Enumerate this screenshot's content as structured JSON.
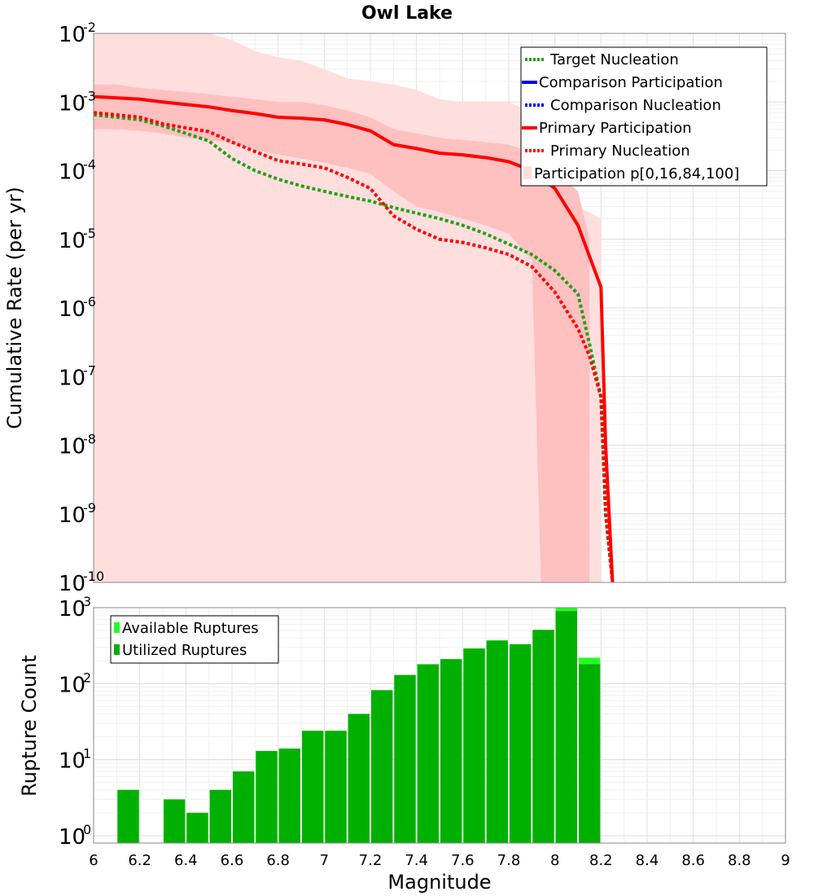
{
  "chart_data": [
    {
      "type": "line",
      "title": "Owl Lake",
      "ylabel": "Cumulative Rate (per yr)",
      "xlim": [
        6,
        9
      ],
      "ylim": [
        1e-10,
        0.01
      ],
      "yscale": "log",
      "grid": true,
      "legend_position": "top-right",
      "x_ticks": [],
      "y_ticks": [
        {
          "base": "10",
          "exp": "-2"
        },
        {
          "base": "10",
          "exp": "-3"
        },
        {
          "base": "10",
          "exp": "-4"
        },
        {
          "base": "10",
          "exp": "-5"
        },
        {
          "base": "10",
          "exp": "-6"
        },
        {
          "base": "10",
          "exp": "-7"
        },
        {
          "base": "10",
          "exp": "-8"
        },
        {
          "base": "10",
          "exp": "-9"
        },
        {
          "base": "10",
          "exp": "-10"
        }
      ],
      "legend": [
        "Target Nucleation",
        "Comparison Participation",
        "Comparison Nucleation",
        "Primary Participation",
        "Primary Nucleation",
        "Participation p[0,16,84,100]"
      ],
      "colors": {
        "target": "#22a11a",
        "comparison": "#0000ee",
        "primary": "#ff0000",
        "band_outer": "#ffdede",
        "band_inner": "#ffc0c0"
      },
      "series": [
        {
          "name": "Target Nucleation",
          "style": "dotted",
          "x": [
            6.0,
            6.1,
            6.2,
            6.3,
            6.4,
            6.5,
            6.6,
            6.7,
            6.8,
            6.9,
            7.0,
            7.1,
            7.2,
            7.3,
            7.4,
            7.5,
            7.6,
            7.7,
            7.8,
            7.9,
            8.0,
            8.1,
            8.15,
            8.2,
            8.22,
            8.25
          ],
          "y": [
            0.00065,
            0.0006,
            0.00055,
            0.00045,
            0.00035,
            0.00027,
            0.00015,
            0.0001,
            7.5e-05,
            6e-05,
            5e-05,
            4.2e-05,
            3.6e-05,
            2.9e-05,
            2.4e-05,
            2e-05,
            1.6e-05,
            1.2e-05,
            8.5e-06,
            6e-06,
            3.5e-06,
            1.6e-06,
            3e-07,
            5e-08,
            1e-09,
            1e-10
          ]
        },
        {
          "name": "Primary Participation",
          "style": "solid",
          "x": [
            6.0,
            6.2,
            6.3,
            6.4,
            6.5,
            6.6,
            6.7,
            6.8,
            6.9,
            7.0,
            7.1,
            7.2,
            7.3,
            7.4,
            7.5,
            7.6,
            7.7,
            7.8,
            7.9,
            8.0,
            8.1,
            8.2,
            8.22,
            8.25
          ],
          "y": [
            0.0012,
            0.0011,
            0.001,
            0.00092,
            0.00085,
            0.00075,
            0.00068,
            0.0006,
            0.00058,
            0.00055,
            0.00047,
            0.00038,
            0.00024,
            0.00021,
            0.00018,
            0.00017,
            0.000155,
            0.000135,
            0.0001,
            5.5e-05,
            1.6e-05,
            2e-06,
            1e-08,
            1e-10
          ]
        },
        {
          "name": "Primary Nucleation",
          "style": "dotted",
          "x": [
            6.0,
            6.1,
            6.2,
            6.3,
            6.4,
            6.5,
            6.6,
            6.7,
            6.8,
            6.9,
            7.0,
            7.1,
            7.2,
            7.3,
            7.4,
            7.5,
            7.6,
            7.7,
            7.8,
            7.9,
            8.0,
            8.1,
            8.15,
            8.2,
            8.22,
            8.25
          ],
          "y": [
            0.0007,
            0.00065,
            0.0006,
            0.00048,
            0.00042,
            0.00037,
            0.00026,
            0.00019,
            0.00014,
            0.000125,
            0.00011,
            8e-05,
            5.5e-05,
            2.2e-05,
            1.4e-05,
            1e-05,
            9e-06,
            7.5e-06,
            6e-06,
            4e-06,
            1.7e-06,
            5e-07,
            2e-07,
            5e-08,
            1e-09,
            1e-10
          ]
        }
      ],
      "bands": [
        {
          "name": "p0-p100",
          "x": [
            6.0,
            6.5,
            6.6,
            6.7,
            6.8,
            6.9,
            7.0,
            7.1,
            7.2,
            7.3,
            7.4,
            7.5,
            7.6,
            7.7,
            7.8,
            7.9,
            8.0,
            8.1,
            8.2
          ],
          "upper": [
            0.01,
            0.01,
            0.008,
            0.0055,
            0.0045,
            0.004,
            0.003,
            0.0022,
            0.002,
            0.0018,
            0.0015,
            0.0011,
            0.001,
            0.001,
            0.001,
            0.0007,
            0.0001,
            3e-05,
            2e-05
          ],
          "lower": [
            1e-10,
            1e-10,
            1e-10,
            1e-10,
            1e-10,
            1e-10,
            1e-10,
            1e-10,
            1e-10,
            1e-10,
            1e-10,
            1e-10,
            1e-10,
            1e-10,
            1e-10,
            1e-10,
            1e-10,
            1e-10,
            1e-10
          ]
        },
        {
          "name": "p16-p84",
          "x": [
            6.0,
            6.1,
            6.2,
            6.3,
            6.4,
            6.5,
            6.6,
            6.7,
            6.8,
            6.9,
            7.0,
            7.1,
            7.2,
            7.3,
            7.4,
            7.5,
            7.6,
            7.7,
            7.8,
            7.9,
            7.94,
            8.0,
            8.1,
            8.15
          ],
          "upper": [
            0.0018,
            0.0018,
            0.0016,
            0.0015,
            0.0014,
            0.0013,
            0.0012,
            0.0011,
            0.001,
            0.001,
            0.0009,
            0.00075,
            0.0006,
            0.0004,
            0.00035,
            0.0003,
            0.00028,
            0.00026,
            0.00024,
            0.00018,
            0.00015,
            0.0001,
            5e-05,
            1e-05
          ],
          "lower": [
            0.0004,
            0.0004,
            0.00038,
            0.00035,
            0.0003,
            0.00028,
            0.00025,
            0.0002,
            0.00017,
            0.00015,
            0.00013,
            0.00011,
            9e-05,
            5e-05,
            3e-05,
            2.5e-05,
            2e-05,
            1.6e-05,
            1.2e-05,
            5e-06,
            1e-10,
            1e-10,
            1e-10,
            1e-10
          ]
        }
      ]
    },
    {
      "type": "bar",
      "xlabel": "Magnitude",
      "ylabel": "Rupture Count",
      "xlim": [
        6,
        9
      ],
      "ylim": [
        0.8,
        1000
      ],
      "yscale": "log",
      "grid": true,
      "legend_position": "top-left",
      "x_ticks": [
        "6",
        "6.2",
        "6.4",
        "6.6",
        "6.8",
        "7",
        "7.2",
        "7.4",
        "7.6",
        "7.8",
        "8",
        "8.2",
        "8.4",
        "8.6",
        "8.8",
        "9"
      ],
      "y_ticks": [
        {
          "base": "10",
          "exp": "3"
        },
        {
          "base": "10",
          "exp": "2"
        },
        {
          "base": "10",
          "exp": "1"
        },
        {
          "base": "10",
          "exp": "0"
        }
      ],
      "legend": [
        "Available Ruptures",
        "Utilized Ruptures"
      ],
      "colors": {
        "available": "#22ff22",
        "utilized": "#00b000"
      },
      "bin_width": 0.1,
      "categories": [
        6.15,
        6.25,
        6.35,
        6.45,
        6.55,
        6.65,
        6.75,
        6.85,
        6.95,
        7.05,
        7.15,
        7.25,
        7.35,
        7.45,
        7.55,
        7.65,
        7.75,
        7.85,
        7.95,
        8.05,
        8.15
      ],
      "series": [
        {
          "name": "Available Ruptures",
          "values": [
            4,
            0,
            3,
            2,
            4,
            7,
            13,
            14,
            24,
            24,
            40,
            82,
            130,
            180,
            210,
            290,
            370,
            330,
            510,
            1000,
            220
          ]
        },
        {
          "name": "Utilized Ruptures",
          "values": [
            4,
            0,
            3,
            2,
            4,
            7,
            13,
            14,
            24,
            24,
            40,
            82,
            130,
            180,
            210,
            290,
            370,
            330,
            510,
            900,
            180
          ]
        }
      ]
    }
  ]
}
